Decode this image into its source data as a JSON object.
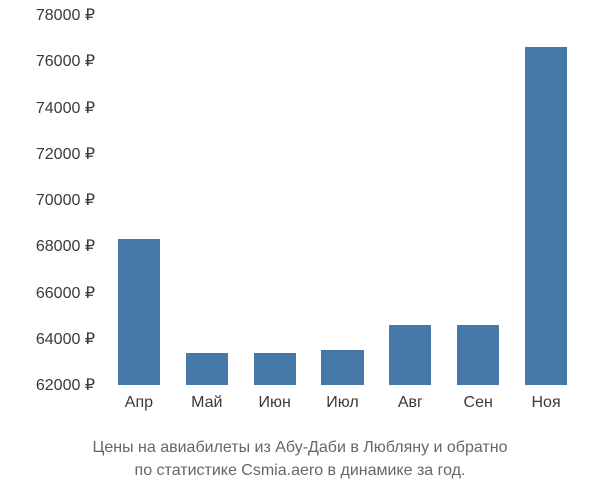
{
  "chart": {
    "type": "bar",
    "categories": [
      "Апр",
      "Май",
      "Июн",
      "Июл",
      "Авг",
      "Сен",
      "Ноя"
    ],
    "values": [
      68300,
      63400,
      63400,
      63500,
      64600,
      64600,
      76600
    ],
    "bar_color": "#4678a8",
    "background_color": "#ffffff",
    "text_color": "#393939",
    "caption_color": "#666666",
    "ylim": [
      62000,
      78000
    ],
    "ytick_step": 2000,
    "ytick_labels": [
      "62000 ₽",
      "64000 ₽",
      "66000 ₽",
      "68000 ₽",
      "70000 ₽",
      "72000 ₽",
      "74000 ₽",
      "76000 ₽",
      "78000 ₽"
    ],
    "yticks": [
      62000,
      64000,
      66000,
      68000,
      70000,
      72000,
      74000,
      76000,
      78000
    ],
    "bar_width_ratio": 0.62,
    "label_fontsize": 16,
    "caption_fontsize": 16
  },
  "caption": {
    "line1": "Цены на авиабилеты из Абу-Даби в Любляну и обратно",
    "line2": "по статистике Csmia.aero в динамике за год."
  }
}
